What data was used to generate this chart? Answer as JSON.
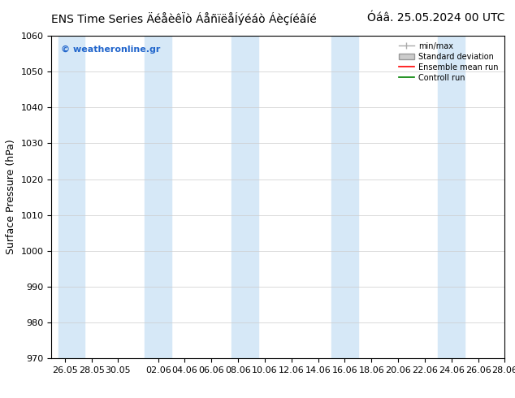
{
  "title_left": "ENS Time Series ÄéåèêÃò ÁåñïëåÍýéáò Áèçíéâíé",
  "title_left_str": "ENS Time Series ÄéåèêÏò ÁåñïëåÍýéáò Áèçíéâíé",
  "title_right": "Óáâ. 25.05.2024 00 UTC",
  "ylabel": "Surface Pressure (hPa)",
  "watermark": "© weatheronline.gr",
  "ylim": [
    970,
    1060
  ],
  "yticks": [
    970,
    980,
    990,
    1000,
    1010,
    1020,
    1030,
    1040,
    1050,
    1060
  ],
  "xlim": [
    0,
    34
  ],
  "xtick_labels": [
    "26.05",
    "28.05",
    "30.05",
    "02.06",
    "04.06",
    "06.06",
    "08.06",
    "10.06",
    "12.06",
    "14.06",
    "16.06",
    "18.06",
    "20.06",
    "22.06",
    "24.06",
    "26.06",
    "28.06"
  ],
  "xtick_positions": [
    1,
    3,
    5,
    8,
    10,
    12,
    14,
    16,
    18,
    20,
    22,
    24,
    26,
    28,
    30,
    32,
    34
  ],
  "background_color": "#ffffff",
  "plot_bg_color": "#ffffff",
  "band_color": "#d6e8f7",
  "band_centers": [
    1.5,
    8,
    14.5,
    22,
    30
  ],
  "band_widths": [
    2.0,
    2.0,
    2.0,
    2.0,
    2.0
  ],
  "legend_minmax_color": "#aaaaaa",
  "legend_std_color": "#cccccc",
  "legend_mean_color": "#ff0000",
  "legend_control_color": "#008000",
  "title_fontsize": 10,
  "label_fontsize": 9,
  "tick_fontsize": 8,
  "watermark_color": "#2266cc"
}
